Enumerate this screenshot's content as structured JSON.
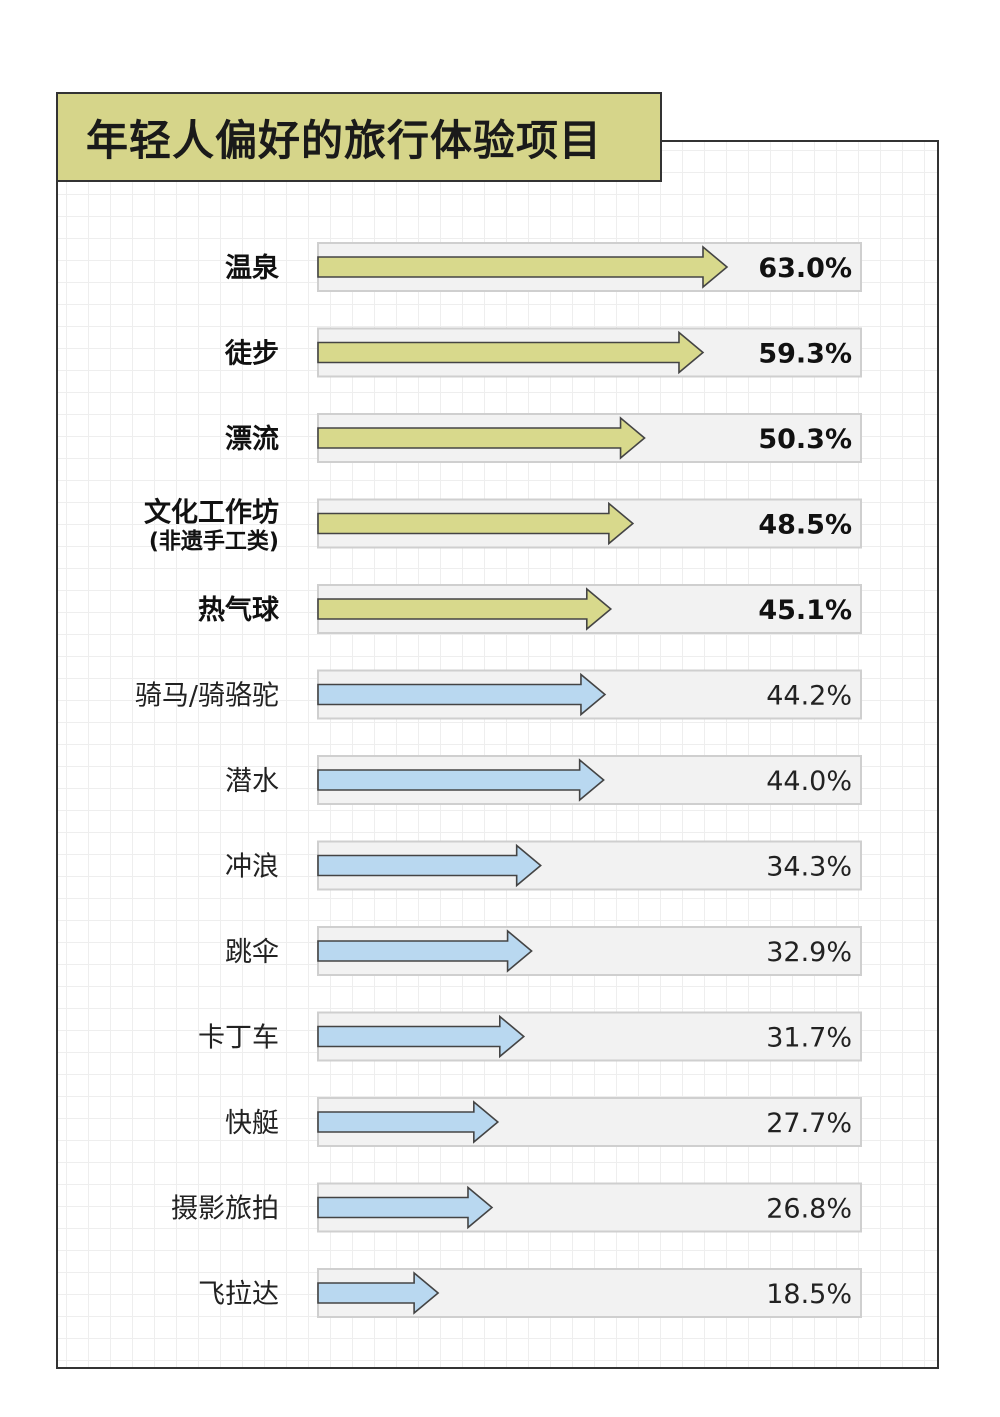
{
  "chart_data": {
    "type": "bar",
    "title": "年轻人偏好的旅行体验项目",
    "categories": [
      {
        "label": "温泉",
        "sub": ""
      },
      {
        "label": "徒步",
        "sub": ""
      },
      {
        "label": "漂流",
        "sub": ""
      },
      {
        "label": "文化工作坊",
        "sub": "(非遗手工类)"
      },
      {
        "label": "热气球",
        "sub": ""
      },
      {
        "label": "骑马/骑骆驼",
        "sub": ""
      },
      {
        "label": "潜水",
        "sub": ""
      },
      {
        "label": "冲浪",
        "sub": ""
      },
      {
        "label": "跳伞",
        "sub": ""
      },
      {
        "label": "卡丁车",
        "sub": ""
      },
      {
        "label": "快艇",
        "sub": ""
      },
      {
        "label": "摄影旅拍",
        "sub": ""
      },
      {
        "label": "飞拉达",
        "sub": ""
      }
    ],
    "values": [
      63.0,
      59.3,
      50.3,
      48.5,
      45.1,
      44.2,
      44.0,
      34.3,
      32.9,
      31.7,
      27.7,
      26.8,
      18.5
    ],
    "value_labels": [
      "63.0%",
      "59.3%",
      "50.3%",
      "48.5%",
      "45.1%",
      "44.2%",
      "44.0%",
      "34.3%",
      "32.9%",
      "31.7%",
      "27.7%",
      "26.8%",
      "18.5%"
    ],
    "highlight_top_n": 5,
    "xlim": [
      0,
      63.0
    ],
    "colors": {
      "highlight": "#d8d98c",
      "normal": "#b9d8f0",
      "track": "#f2f2f2",
      "title_bg": "#d6d58a"
    }
  }
}
